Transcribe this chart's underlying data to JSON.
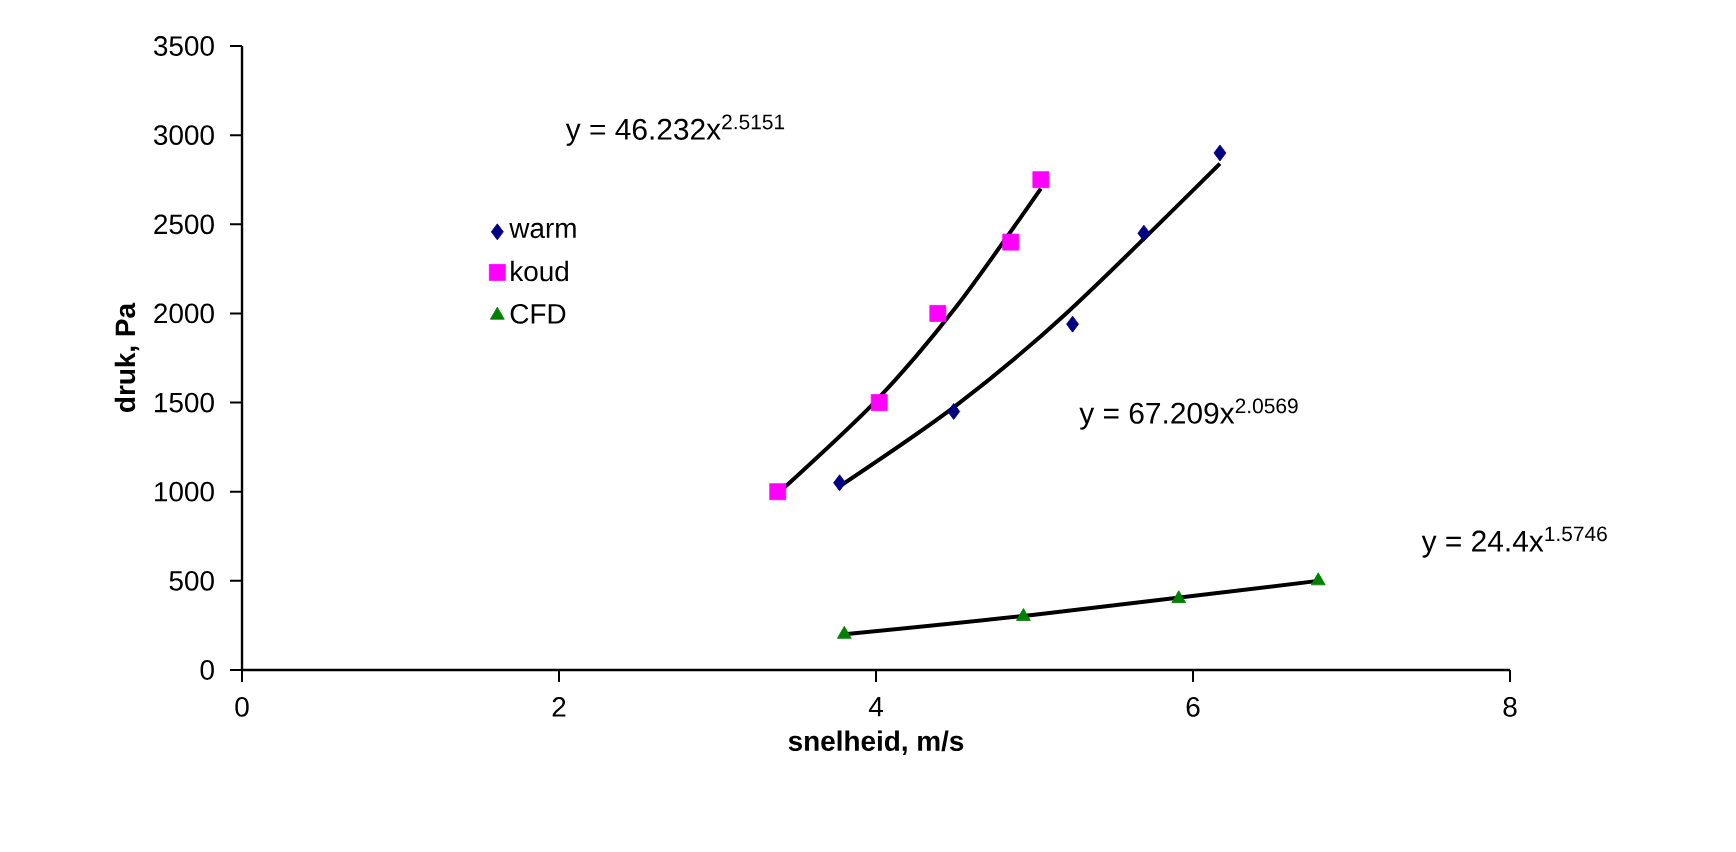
{
  "chart_data": {
    "type": "scatter",
    "xlabel": "snelheid, m/s",
    "ylabel": "druk, Pa",
    "xlim": [
      0,
      8
    ],
    "ylim": [
      0,
      3500
    ],
    "xticks": [
      0,
      2,
      4,
      6,
      8
    ],
    "yticks": [
      0,
      500,
      1000,
      1500,
      2000,
      2500,
      3000,
      3500
    ],
    "grid": false,
    "legend": "top left",
    "series": [
      {
        "name": "warm",
        "color": "#000080",
        "marker": "diamond",
        "x": [
          3.77,
          4.49,
          5.24,
          5.69,
          6.17
        ],
        "values": [
          1050,
          1450,
          1940,
          2450,
          2900
        ]
      },
      {
        "name": "koud",
        "color": "#ff00ff",
        "marker": "square",
        "x": [
          3.38,
          4.02,
          4.39,
          4.85,
          5.04
        ],
        "values": [
          1000,
          1500,
          2000,
          2400,
          2750
        ]
      },
      {
        "name": "CFD",
        "color": "#008000",
        "marker": "triangle",
        "x": [
          3.8,
          4.93,
          5.91,
          6.79
        ],
        "values": [
          200,
          300,
          400,
          500
        ]
      },
      {
        "type": "line",
        "color": "#000000",
        "x": [
          3.38,
          4.0,
          4.5,
          5.04
        ],
        "values": [
          990,
          1510,
          2030,
          2700
        ]
      },
      {
        "type": "line",
        "color": "#000000",
        "x": [
          3.77,
          4.5,
          5.2,
          6.17
        ],
        "values": [
          1030,
          1480,
          2000,
          2840
        ]
      },
      {
        "type": "line",
        "color": "#000000",
        "x": [
          3.8,
          5.0,
          6.79
        ],
        "values": [
          200,
          310,
          500
        ]
      }
    ],
    "annotations": [
      "y = 46.232x$^{2.5151}$",
      "y = 67.209x$^{2.0569}$",
      "y = 24.4x$^{1.5746}$"
    ]
  }
}
